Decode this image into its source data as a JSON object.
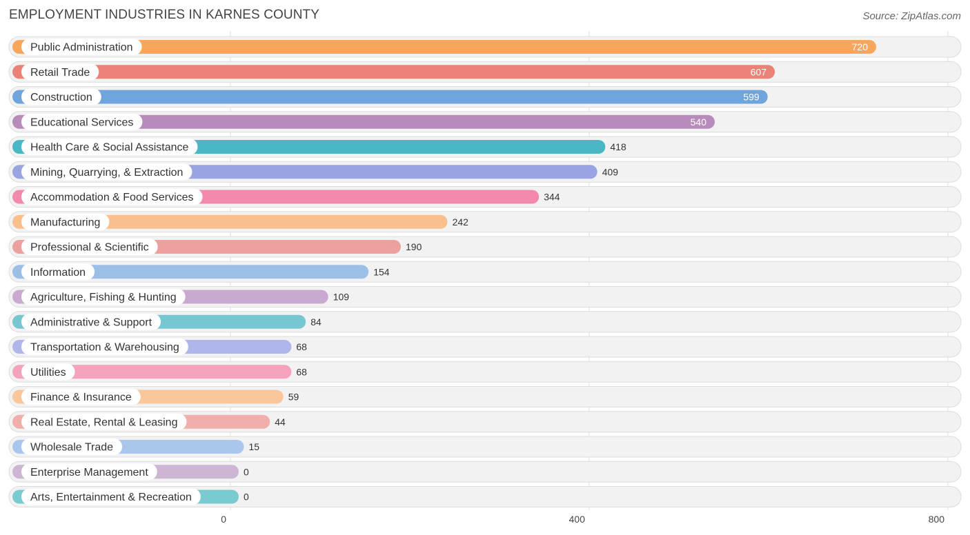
{
  "chart_data": {
    "type": "bar",
    "orientation": "horizontal",
    "title": "EMPLOYMENT INDUSTRIES IN KARNES COUNTY",
    "source": "Source: ZipAtlas.com",
    "xlabel": "",
    "ylabel": "",
    "xlim": [
      0,
      800
    ],
    "ticks": [
      0,
      400,
      800
    ],
    "tick_labels": [
      "0",
      "400",
      "800"
    ],
    "grid": true,
    "categories": [
      "Public Administration",
      "Retail Trade",
      "Construction",
      "Educational Services",
      "Health Care & Social Assistance",
      "Mining, Quarrying, & Extraction",
      "Accommodation & Food Services",
      "Manufacturing",
      "Professional & Scientific",
      "Information",
      "Agriculture, Fishing & Hunting",
      "Administrative & Support",
      "Transportation & Warehousing",
      "Utilities",
      "Finance & Insurance",
      "Real Estate, Rental & Leasing",
      "Wholesale Trade",
      "Enterprise Management",
      "Arts, Entertainment & Recreation"
    ],
    "values": [
      720,
      607,
      599,
      540,
      418,
      409,
      344,
      242,
      190,
      154,
      109,
      84,
      68,
      68,
      59,
      44,
      15,
      0,
      0
    ],
    "value_labels": [
      "720",
      "607",
      "599",
      "540",
      "418",
      "409",
      "344",
      "242",
      "190",
      "154",
      "109",
      "84",
      "68",
      "68",
      "59",
      "44",
      "15",
      "0",
      "0"
    ],
    "colors": [
      "#f7a65c",
      "#ea8278",
      "#6fa5dc",
      "#b78cbb",
      "#4ab8c4",
      "#9aa4e2",
      "#f48aab",
      "#f9c08e",
      "#eca19f",
      "#9cbfe7",
      "#c9a9cf",
      "#76c7cf",
      "#afb6ea",
      "#f5a3bd",
      "#f9c79b",
      "#f1aeab",
      "#a9c7ec",
      "#ccb6d4",
      "#79cbd0"
    ]
  }
}
